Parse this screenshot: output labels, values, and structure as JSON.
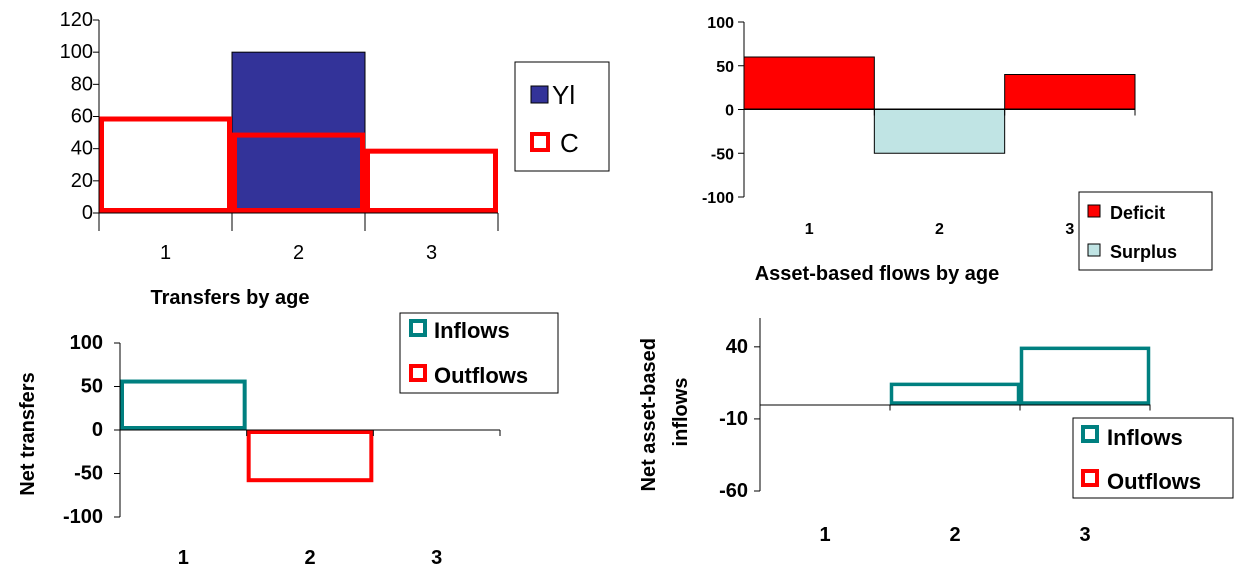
{
  "chart_data": [
    {
      "id": "top-left",
      "type": "bar",
      "title": "",
      "xlabel": "",
      "ylabel": "",
      "categories": [
        "1",
        "2",
        "3"
      ],
      "ylim": [
        0,
        120
      ],
      "yticks": [
        0,
        20,
        40,
        60,
        80,
        100,
        120
      ],
      "series": [
        {
          "name": "Yl",
          "values": [
            null,
            100,
            null
          ],
          "style": "filled",
          "color": "#333399"
        },
        {
          "name": "C",
          "values": [
            60,
            50,
            40
          ],
          "style": "outline",
          "color": "#ff0000"
        }
      ],
      "legend_position": "right"
    },
    {
      "id": "top-right",
      "type": "bar",
      "title": "",
      "xlabel": "Asset-based flows by age",
      "ylabel": "",
      "categories": [
        "1",
        "2",
        "3"
      ],
      "ylim": [
        -100,
        100
      ],
      "yticks": [
        -100,
        -50,
        0,
        50,
        100
      ],
      "series": [
        {
          "name": "Deficit",
          "values": [
            60,
            null,
            40
          ],
          "style": "filled",
          "color": "#ff0000"
        },
        {
          "name": "Surplus",
          "values": [
            null,
            -50,
            null
          ],
          "style": "filled",
          "color": "#c0e4e4"
        }
      ],
      "legend_position": "bottom-right"
    },
    {
      "id": "bottom-left",
      "type": "bar",
      "title": "Transfers by age",
      "xlabel": "",
      "ylabel": "Net transfers",
      "categories": [
        "1",
        "2",
        "3"
      ],
      "ylim": [
        -100,
        100
      ],
      "yticks": [
        -100,
        -50,
        0,
        50,
        100
      ],
      "series": [
        {
          "name": "Inflows",
          "values": [
            58,
            null,
            null
          ],
          "style": "outline",
          "color": "#008080"
        },
        {
          "name": "Outflows",
          "values": [
            null,
            -60,
            null
          ],
          "style": "outline",
          "color": "#ff0000"
        }
      ],
      "legend_position": "top-right"
    },
    {
      "id": "bottom-right",
      "type": "bar",
      "title": "",
      "xlabel": "",
      "ylabel": "Net asset-based inflows",
      "categories": [
        "1",
        "2",
        "3"
      ],
      "ylim": [
        -60,
        60
      ],
      "yticks": [
        -60,
        -10,
        40
      ],
      "series": [
        {
          "name": "Inflows",
          "values": [
            0,
            15,
            40
          ],
          "style": "outline",
          "color": "#008080"
        },
        {
          "name": "Outflows",
          "values": [
            0,
            0,
            0
          ],
          "style": "outline",
          "color": "#ff0000"
        }
      ],
      "legend_position": "right"
    }
  ]
}
